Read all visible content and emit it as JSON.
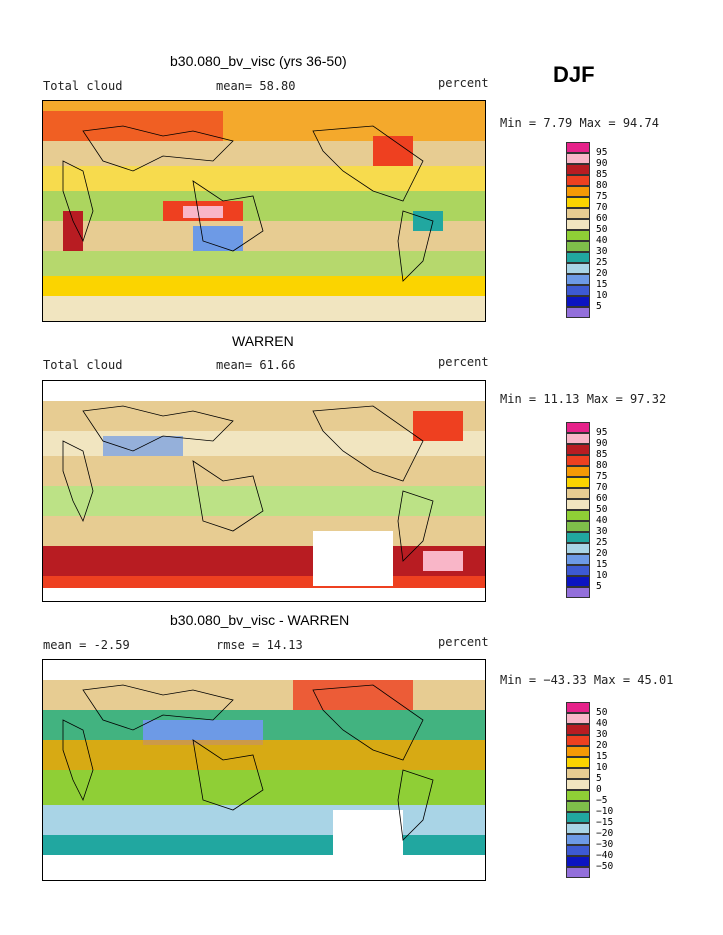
{
  "season": "DJF",
  "panels": [
    {
      "title": "b30.080_bv_visc (yrs 36-50)",
      "left_label": "Total cloud",
      "center_label": "mean=  58.80",
      "right_label": "percent",
      "minmax": "Min =   7.79 Max =  94.74",
      "colorbar": [
        "95",
        "90",
        "85",
        "80",
        "75",
        "70",
        "60",
        "50",
        "40",
        "30",
        "25",
        "20",
        "15",
        "10",
        "5"
      ]
    },
    {
      "title": "WARREN",
      "left_label": "Total cloud",
      "center_label": "mean=  61.66",
      "right_label": "percent",
      "minmax": "Min =  11.13 Max =  97.32",
      "colorbar": [
        "95",
        "90",
        "85",
        "80",
        "75",
        "70",
        "60",
        "50",
        "40",
        "30",
        "25",
        "20",
        "15",
        "10",
        "5"
      ]
    },
    {
      "title": "b30.080_bv_visc - WARREN",
      "left_label": "mean =  -2.59",
      "center_label": "rmse =  14.13",
      "right_label": "percent",
      "minmax": "Min = −43.33 Max =  45.01",
      "colorbar": [
        "50",
        "40",
        "30",
        "20",
        "15",
        "10",
        "5",
        "0",
        "−5",
        "−10",
        "−15",
        "−20",
        "−30",
        "−40",
        "−50"
      ]
    }
  ],
  "palette": [
    "#e6228a",
    "#f9b6c8",
    "#b81c22",
    "#ee4020",
    "#f59a06",
    "#fbd400",
    "#e7cc92",
    "#f1e5c0",
    "#8fcf36",
    "#7fbf4a",
    "#21a7a0",
    "#a9d4e6",
    "#6d9ae6",
    "#3d5ad2",
    "#0b14c0",
    "#9370db"
  ],
  "chart_data": [
    {
      "type": "heatmap",
      "title": "b30.080_bv_visc (yrs 36-50)",
      "variable": "Total cloud",
      "units": "percent",
      "mean": 58.8,
      "min": 7.79,
      "max": 94.74,
      "levels": [
        5,
        10,
        15,
        20,
        25,
        30,
        40,
        50,
        60,
        70,
        75,
        80,
        85,
        90,
        95
      ]
    },
    {
      "type": "heatmap",
      "title": "WARREN",
      "variable": "Total cloud",
      "units": "percent",
      "mean": 61.66,
      "min": 11.13,
      "max": 97.32,
      "levels": [
        5,
        10,
        15,
        20,
        25,
        30,
        40,
        50,
        60,
        70,
        75,
        80,
        85,
        90,
        95
      ]
    },
    {
      "type": "heatmap",
      "title": "b30.080_bv_visc - WARREN",
      "units": "percent",
      "mean": -2.59,
      "rmse": 14.13,
      "min": -43.33,
      "max": 45.01,
      "levels": [
        -50,
        -40,
        -30,
        -20,
        -15,
        -10,
        -5,
        0,
        5,
        10,
        15,
        20,
        30,
        40,
        50
      ]
    }
  ]
}
